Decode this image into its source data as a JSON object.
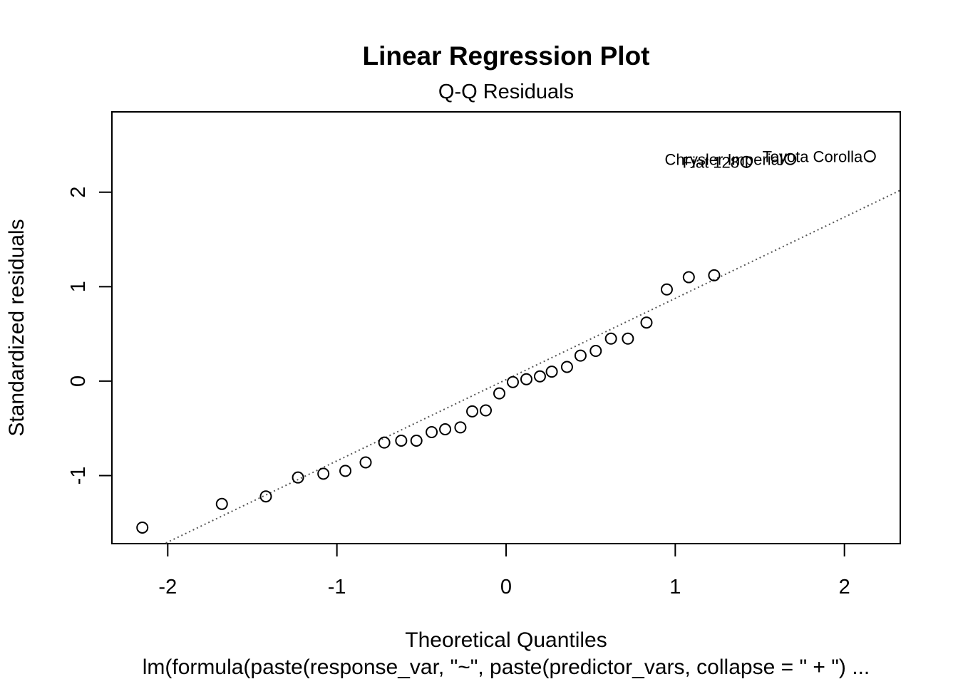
{
  "chart_data": {
    "type": "scatter",
    "title": "Linear Regression Plot",
    "subtitle": "Q-Q Residuals",
    "xlabel": "Theoretical Quantiles",
    "ylabel": "Standardized residuals",
    "caption": "lm(formula(paste(response_var, \"~\", paste(predictor_vars, collapse = \" + \") ...",
    "xlim": [
      -2.33,
      2.33
    ],
    "ylim": [
      -1.72,
      2.85
    ],
    "x_ticks": [
      "-2",
      "-1",
      "0",
      "1",
      "2"
    ],
    "y_ticks": [
      "-1",
      "0",
      "1",
      "2"
    ],
    "grid": false,
    "reference_line": {
      "intercept": 0.016,
      "slope": 0.86,
      "style": "dotted"
    },
    "points": [
      {
        "x": -2.15,
        "y": -1.55
      },
      {
        "x": -1.68,
        "y": -1.3
      },
      {
        "x": -1.42,
        "y": -1.22
      },
      {
        "x": -1.23,
        "y": -1.02
      },
      {
        "x": -1.08,
        "y": -0.98
      },
      {
        "x": -0.95,
        "y": -0.95
      },
      {
        "x": -0.83,
        "y": -0.86
      },
      {
        "x": -0.72,
        "y": -0.65
      },
      {
        "x": -0.62,
        "y": -0.63
      },
      {
        "x": -0.53,
        "y": -0.63
      },
      {
        "x": -0.44,
        "y": -0.54
      },
      {
        "x": -0.36,
        "y": -0.51
      },
      {
        "x": -0.27,
        "y": -0.49
      },
      {
        "x": -0.2,
        "y": -0.32
      },
      {
        "x": -0.12,
        "y": -0.31
      },
      {
        "x": -0.04,
        "y": -0.13
      },
      {
        "x": 0.04,
        "y": -0.01
      },
      {
        "x": 0.12,
        "y": 0.02
      },
      {
        "x": 0.2,
        "y": 0.05
      },
      {
        "x": 0.27,
        "y": 0.1
      },
      {
        "x": 0.36,
        "y": 0.15
      },
      {
        "x": 0.44,
        "y": 0.27
      },
      {
        "x": 0.53,
        "y": 0.32
      },
      {
        "x": 0.62,
        "y": 0.45
      },
      {
        "x": 0.72,
        "y": 0.45
      },
      {
        "x": 0.83,
        "y": 0.62
      },
      {
        "x": 0.95,
        "y": 0.97
      },
      {
        "x": 1.08,
        "y": 1.1
      },
      {
        "x": 1.23,
        "y": 1.12
      },
      {
        "x": 1.42,
        "y": 2.32,
        "label": "Fiat 128"
      },
      {
        "x": 1.68,
        "y": 2.35,
        "label": "Chrysler Imperial"
      },
      {
        "x": 2.15,
        "y": 2.38,
        "label": "Toyota Corolla"
      }
    ]
  }
}
